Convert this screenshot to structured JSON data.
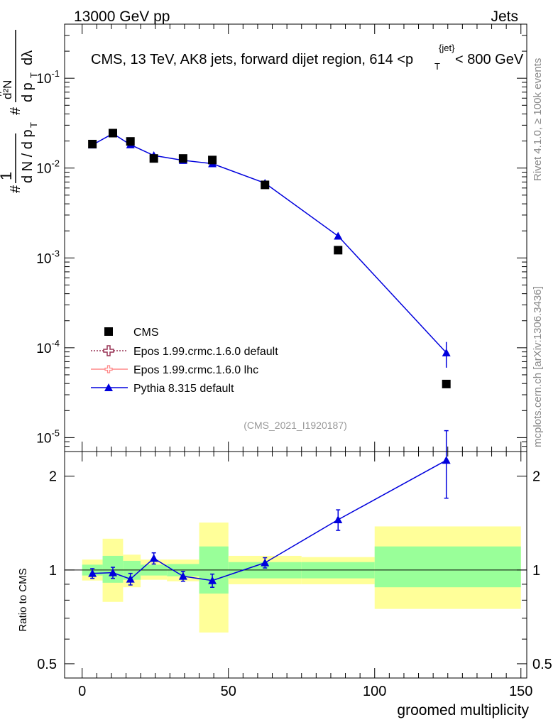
{
  "header": {
    "left": "13000 GeV pp",
    "right": "Jets"
  },
  "side_labels": {
    "rivet": "Rivet 4.1.0, ≥ 100k events",
    "mcplots": "mcplots.cern.ch [arXiv:1306.3436]"
  },
  "analysis_id": "(CMS_2021_I1920187)",
  "colors": {
    "data": "#000000",
    "pythia": "#0000dd",
    "epos_default": "#993355",
    "epos_lhc": "#ff8888",
    "band_inner": "#99ff99",
    "band_outer": "#ffff99"
  },
  "chart_data": [
    {
      "type": "line",
      "title": "CMS, 13 TeV, AK8 jets, forward dijet region, 614 <p_T^{jet}< 800 GeV",
      "ylabel": "1/(dN/dp_T) d²N/(dp_T dλ)",
      "yscale": "log",
      "ylim": [
        7e-06,
        0.4
      ],
      "xlim": [
        -6,
        152
      ],
      "ytick_labels": [
        "10^-5",
        "10^-4",
        "10^-3",
        "10^-2",
        "10^-1"
      ],
      "legend": {
        "position": "lower-left",
        "entries": [
          "CMS",
          "Epos 1.99.crmc.1.6.0 default",
          "Epos 1.99.crmc.1.6.0 lhc",
          "Pythia 8.315 default"
        ]
      },
      "series": [
        {
          "name": "CMS",
          "x": [
            3.5,
            10.5,
            16.5,
            24.5,
            34.5,
            44.5,
            62.5,
            87.5,
            124.5
          ],
          "y": [
            0.0185,
            0.0245,
            0.0198,
            0.0128,
            0.0128,
            0.0123,
            0.0065,
            0.00122,
            3.95e-05
          ]
        },
        {
          "name": "Pythia 8.315 default",
          "x": [
            3.5,
            10.5,
            16.5,
            24.5,
            34.5,
            44.5,
            62.5,
            87.5,
            124.5
          ],
          "y": [
            0.0181,
            0.0242,
            0.0182,
            0.0138,
            0.0122,
            0.0112,
            0.0068,
            0.00175,
            8.8e-05
          ],
          "yerr": [
            0.0003,
            0.0004,
            0.0003,
            0.0003,
            0.0003,
            0.0003,
            0.0003,
            0.00012,
            2.8e-05
          ]
        }
      ]
    },
    {
      "type": "line",
      "ylabel": "Ratio to CMS",
      "xlabel": "groomed multiplicity",
      "yscale": "log",
      "ylim": [
        0.45,
        2.4
      ],
      "xlim": [
        -6,
        152
      ],
      "yticks": [
        0.5,
        1,
        2
      ],
      "ytick_labels": [
        "0.5",
        "1",
        "2"
      ],
      "xticks": [
        0,
        50,
        100,
        150
      ],
      "xtick_labels": [
        "0",
        "50",
        "100",
        "150"
      ],
      "reference_line": 1,
      "uncertainty_bins": [
        {
          "x0": 0,
          "x1": 7,
          "inner": [
            0.96,
            1.04
          ],
          "outer": [
            0.925,
            1.08
          ]
        },
        {
          "x0": 7,
          "x1": 14,
          "inner": [
            0.91,
            1.11
          ],
          "outer": [
            0.79,
            1.26
          ]
        },
        {
          "x0": 14,
          "x1": 20,
          "inner": [
            0.93,
            1.07
          ],
          "outer": [
            0.88,
            1.12
          ]
        },
        {
          "x0": 20,
          "x1": 29,
          "inner": [
            0.96,
            1.04
          ],
          "outer": [
            0.93,
            1.08
          ]
        },
        {
          "x0": 29,
          "x1": 40,
          "inner": [
            0.955,
            1.045
          ],
          "outer": [
            0.92,
            1.08
          ]
        },
        {
          "x0": 40,
          "x1": 50,
          "inner": [
            0.84,
            1.19
          ],
          "outer": [
            0.63,
            1.42
          ]
        },
        {
          "x0": 50,
          "x1": 75,
          "inner": [
            0.94,
            1.06
          ],
          "outer": [
            0.9,
            1.11
          ]
        },
        {
          "x0": 75,
          "x1": 100,
          "inner": [
            0.94,
            1.06
          ],
          "outer": [
            0.9,
            1.1
          ]
        },
        {
          "x0": 100,
          "x1": 150,
          "inner": [
            0.88,
            1.19
          ],
          "outer": [
            0.75,
            1.38
          ]
        }
      ],
      "series": [
        {
          "name": "Pythia 8.315 default",
          "x": [
            3.5,
            10.5,
            16.5,
            24.5,
            34.5,
            44.5,
            62.5,
            87.5,
            124.5
          ],
          "y": [
            0.975,
            0.98,
            0.935,
            1.09,
            0.955,
            0.925,
            1.055,
            1.45,
            2.25
          ],
          "yerr": [
            0.035,
            0.04,
            0.04,
            0.045,
            0.035,
            0.045,
            0.04,
            0.11,
            0.55
          ]
        }
      ]
    }
  ]
}
